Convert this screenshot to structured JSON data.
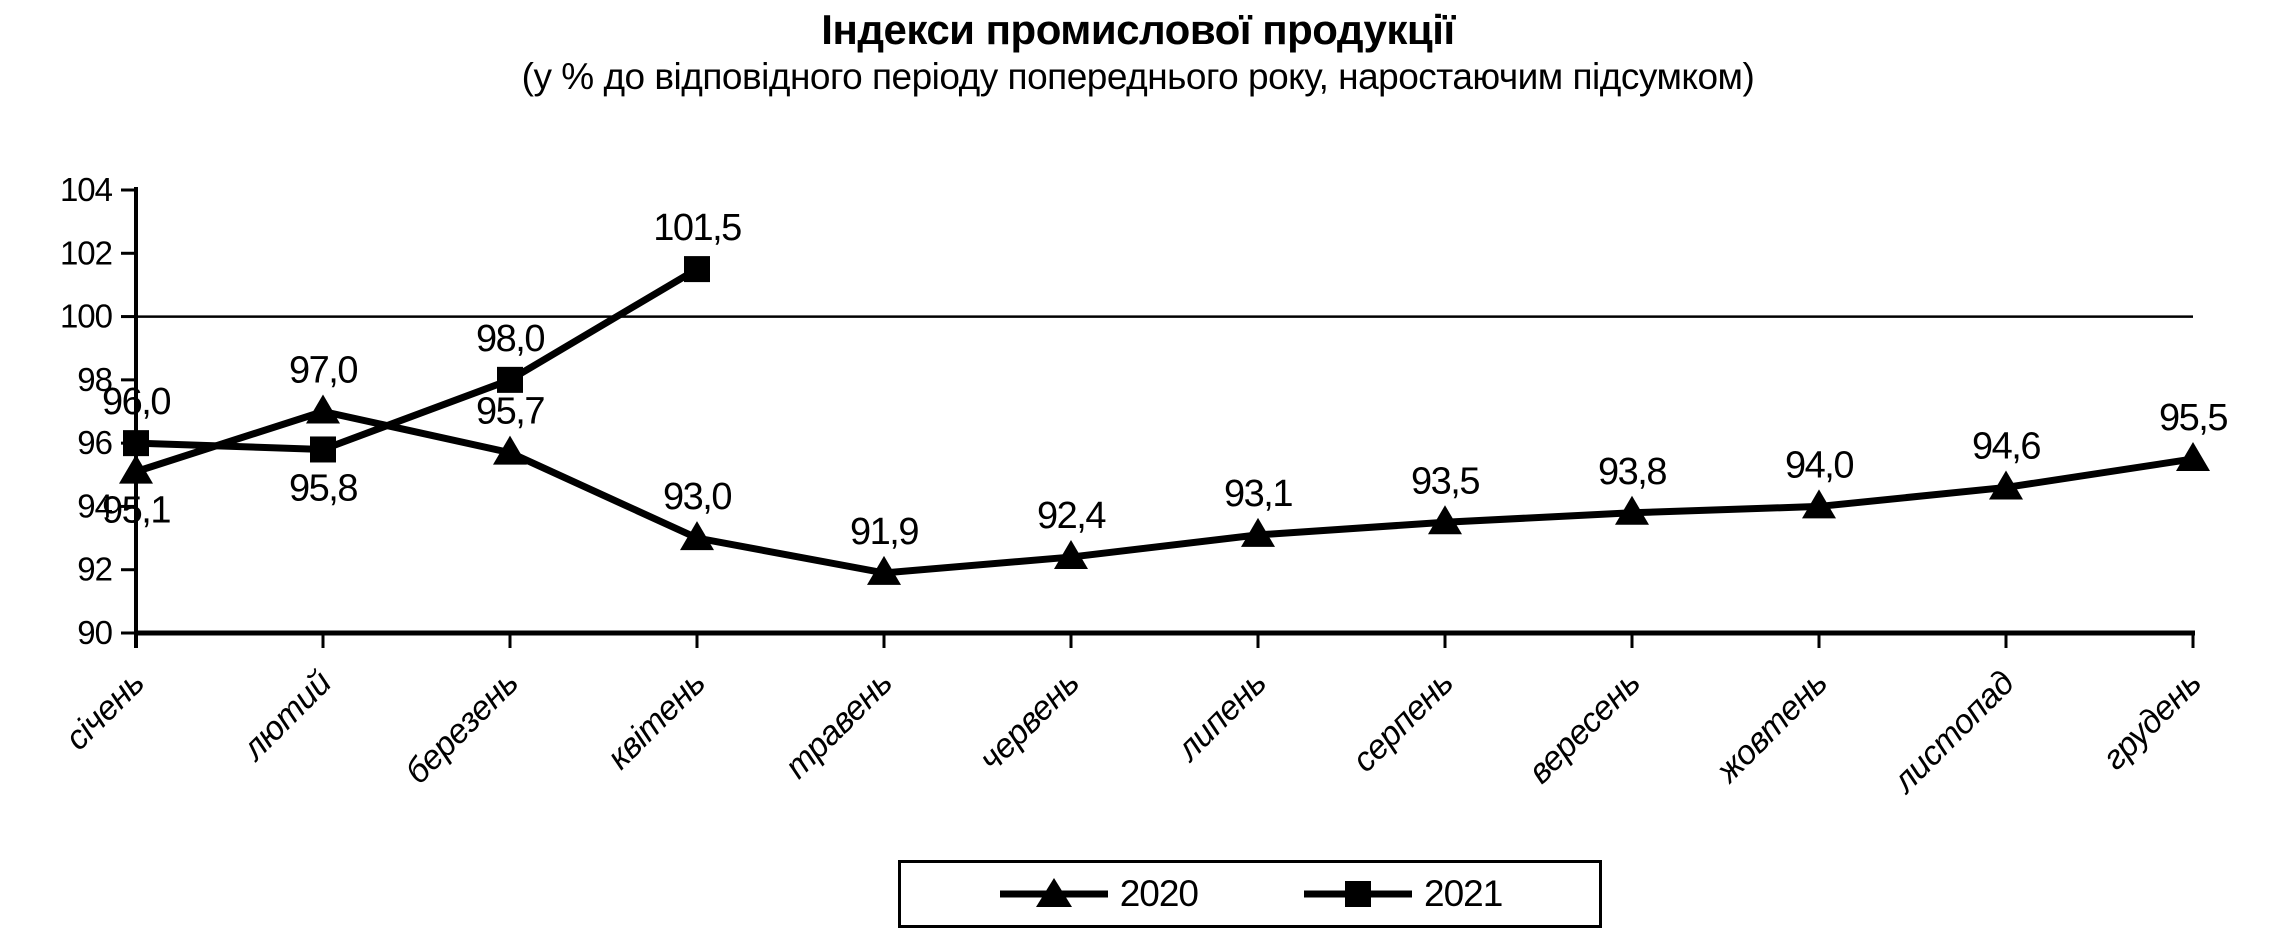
{
  "title": "Індекси промислової продукції",
  "subtitle": "(у % до відповідного періоду попереднього року, наростаючим підсумком)",
  "chart_data": {
    "type": "line",
    "categories": [
      "січень",
      "лютий",
      "березень",
      "квітень",
      "травень",
      "червень",
      "липень",
      "серпень",
      "вересень",
      "жовтень",
      "листопад",
      "грудень"
    ],
    "series": [
      {
        "name": "2020",
        "marker": "triangle",
        "values": [
          95.1,
          97.0,
          95.7,
          93.0,
          91.9,
          92.4,
          93.1,
          93.5,
          93.8,
          94.0,
          94.6,
          95.5
        ],
        "data_labels": [
          "95,1",
          "97,0",
          "95,7",
          "93,0",
          "91,9",
          "92,4",
          "93,1",
          "93,5",
          "93,8",
          "94,0",
          "94,6",
          "95,5"
        ],
        "label_position": [
          "below",
          "above",
          "above",
          "above",
          "above",
          "above",
          "above",
          "above",
          "above",
          "above",
          "above",
          "above"
        ]
      },
      {
        "name": "2021",
        "marker": "square",
        "values": [
          96.0,
          95.8,
          98.0,
          101.5
        ],
        "data_labels": [
          "96,0",
          "95,8",
          "98,0",
          "101,5"
        ],
        "label_position": [
          "above",
          "below",
          "above",
          "above"
        ]
      }
    ],
    "ylim": [
      90,
      104
    ],
    "yticks": [
      90,
      92,
      94,
      96,
      98,
      100,
      102,
      104
    ],
    "reference_line": 100,
    "decimal_separator": ",",
    "grid": "off",
    "legend_position": "bottom",
    "colors": {
      "line": "#000000",
      "text": "#000000",
      "background": "#ffffff"
    }
  }
}
